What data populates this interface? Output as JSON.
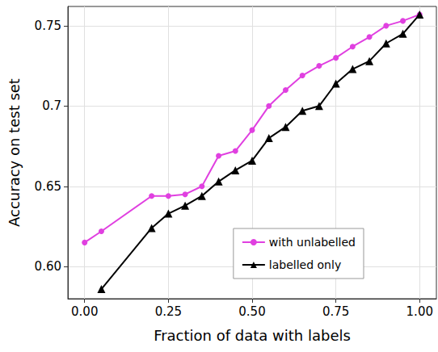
{
  "chart_data": {
    "type": "line",
    "x_label": "Fraction of data with labels",
    "y_label": "Accuracy on test set",
    "xlim": [
      -0.05,
      1.05
    ],
    "xticks": [
      {
        "value": 0,
        "label": "0.00"
      },
      {
        "value": 0.25,
        "label": "0.25"
      },
      {
        "value": 0.5,
        "label": "0.50"
      },
      {
        "value": 0.75,
        "label": "0.75"
      },
      {
        "value": 1,
        "label": "1.00"
      }
    ],
    "ylim": [
      0.58,
      0.762
    ],
    "yticks": [
      {
        "value": 0.6,
        "label": "0.60"
      },
      0.65,
      0.7,
      0.75
    ],
    "grid": true,
    "legend": "bottom right",
    "series": [
      {
        "name": "with unlabelled",
        "color": "#e040e0",
        "marker": "circle",
        "x": [
          0,
          0.05,
          0.2,
          0.25,
          0.3,
          0.35,
          0.4,
          0.45,
          0.5,
          0.55,
          0.6,
          0.65,
          0.7,
          0.75,
          0.8,
          0.85,
          0.9,
          0.95,
          1.0
        ],
        "values": [
          0.615,
          0.622,
          0.644,
          0.644,
          0.645,
          0.65,
          0.669,
          0.672,
          0.685,
          0.7,
          0.71,
          0.719,
          0.725,
          0.73,
          0.737,
          0.743,
          0.75,
          0.753,
          0.757
        ]
      },
      {
        "name": "labelled only",
        "color": "#000000",
        "marker": "triangle",
        "x": [
          0.05,
          0.2,
          0.25,
          0.3,
          0.35,
          0.4,
          0.45,
          0.5,
          0.55,
          0.6,
          0.65,
          0.7,
          0.75,
          0.8,
          0.85,
          0.9,
          0.95,
          1.0
        ],
        "values": [
          0.586,
          0.624,
          0.633,
          0.638,
          0.644,
          0.653,
          0.66,
          0.666,
          0.68,
          0.687,
          0.697,
          0.7,
          0.714,
          0.723,
          0.728,
          0.739,
          0.745,
          0.757
        ]
      }
    ]
  }
}
